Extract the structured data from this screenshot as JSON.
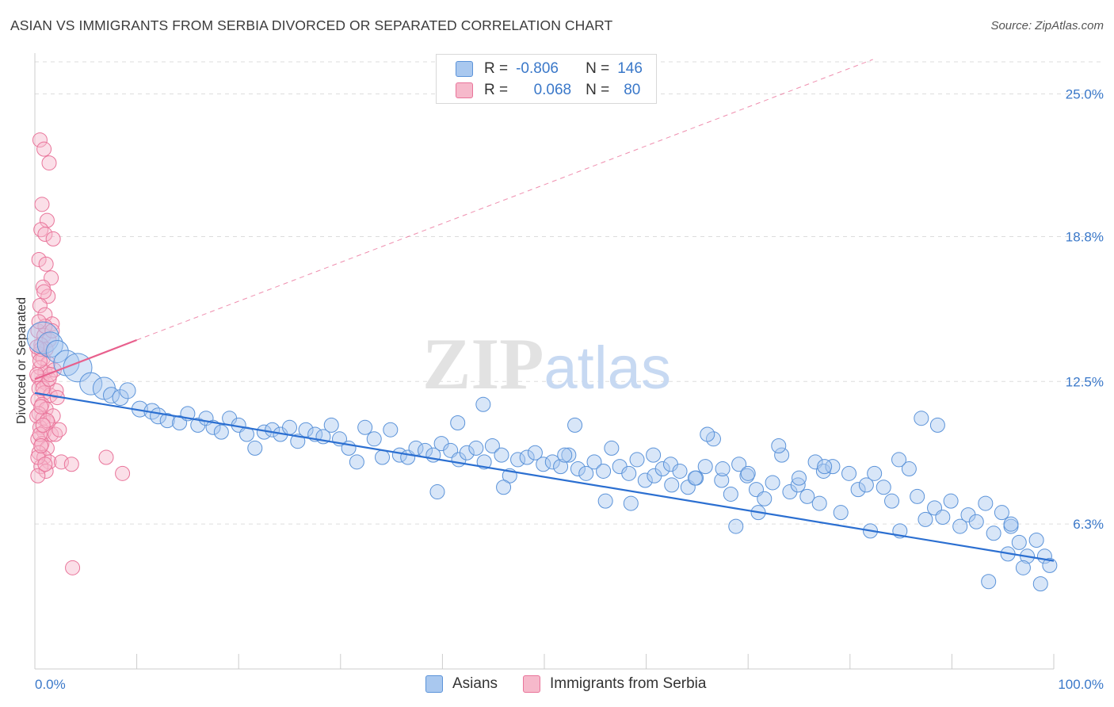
{
  "title": "ASIAN VS IMMIGRANTS FROM SERBIA DIVORCED OR SEPARATED CORRELATION CHART",
  "source": "Source: ZipAtlas.com",
  "watermark": {
    "part1": "ZIP",
    "part2": "atlas"
  },
  "legend_top": {
    "rows": [
      {
        "r_label": "R =",
        "r_value": "-0.806",
        "n_label": "N =",
        "n_value": "146"
      },
      {
        "r_label": "R =",
        "r_value": "0.068",
        "n_label": "N =",
        "n_value": "80"
      }
    ]
  },
  "legend_bottom": {
    "items": [
      {
        "label": "Asians"
      },
      {
        "label": "Immigrants from Serbia"
      }
    ]
  },
  "colors": {
    "blue_fill": "#a9c8ef",
    "blue_stroke": "#5b93d9",
    "blue_line": "#2b6fd1",
    "pink_fill": "#f6b9cb",
    "pink_stroke": "#e9749a",
    "pink_line": "#e8608d",
    "tick_text": "#3a78c9",
    "grid": "#dddddd"
  },
  "chart_data": {
    "type": "scatter",
    "title": "ASIAN VS IMMIGRANTS FROM SERBIA DIVORCED OR SEPARATED CORRELATION CHART",
    "xlabel": "",
    "ylabel": "Divorced or Separated",
    "xlim": [
      0,
      100
    ],
    "ylim": [
      0,
      26.5
    ],
    "x_tick_labels": [
      "0.0%",
      "100.0%"
    ],
    "y_ticks": [
      6.3,
      12.5,
      18.8,
      25.0
    ],
    "y_tick_labels": [
      "6.3%",
      "12.5%",
      "18.8%",
      "25.0%"
    ],
    "grid": true,
    "legend_placement": "top-center",
    "series": [
      {
        "name": "Asians",
        "r": -0.806,
        "n": 146,
        "trend": {
          "x": [
            0,
            100
          ],
          "y": [
            12.0,
            4.7
          ]
        },
        "points": [
          [
            0.8,
            14.4,
            20
          ],
          [
            1.5,
            14.1,
            16
          ],
          [
            2.2,
            13.8,
            14
          ],
          [
            3.1,
            13.3,
            16
          ],
          [
            4.2,
            13.1,
            18
          ],
          [
            5.5,
            12.4,
            14
          ],
          [
            6.8,
            12.2,
            14
          ],
          [
            7.5,
            11.9,
            10
          ],
          [
            8.4,
            11.8,
            10
          ],
          [
            9.1,
            12.1,
            10
          ],
          [
            10.3,
            11.3,
            10
          ],
          [
            11.5,
            11.2,
            10
          ],
          [
            12.1,
            11.0,
            10
          ],
          [
            13.0,
            10.8,
            9
          ],
          [
            14.2,
            10.7,
            9
          ],
          [
            15.0,
            11.1,
            9
          ],
          [
            16.0,
            10.6,
            9
          ],
          [
            16.8,
            10.9,
            9
          ],
          [
            17.5,
            10.5,
            9
          ],
          [
            18.3,
            10.3,
            9
          ],
          [
            19.1,
            10.9,
            9
          ],
          [
            20.0,
            10.6,
            9
          ],
          [
            20.8,
            10.2,
            9
          ],
          [
            21.6,
            9.6,
            9
          ],
          [
            22.5,
            10.3,
            9
          ],
          [
            23.3,
            10.4,
            9
          ],
          [
            24.1,
            10.2,
            9
          ],
          [
            25.0,
            10.5,
            9
          ],
          [
            25.8,
            9.9,
            9
          ],
          [
            26.6,
            10.4,
            9
          ],
          [
            27.5,
            10.2,
            9
          ],
          [
            28.3,
            10.1,
            9
          ],
          [
            29.1,
            10.6,
            9
          ],
          [
            29.9,
            10.0,
            9
          ],
          [
            30.8,
            9.6,
            9
          ],
          [
            31.6,
            9.0,
            9
          ],
          [
            32.4,
            10.5,
            9
          ],
          [
            33.3,
            10.0,
            9
          ],
          [
            34.1,
            9.2,
            9
          ],
          [
            34.9,
            10.4,
            9
          ],
          [
            35.8,
            9.3,
            9
          ],
          [
            36.6,
            9.2,
            9
          ],
          [
            37.4,
            9.6,
            9
          ],
          [
            38.3,
            9.5,
            9
          ],
          [
            39.1,
            9.3,
            9
          ],
          [
            39.9,
            9.8,
            9
          ],
          [
            40.8,
            9.5,
            9
          ],
          [
            41.6,
            9.1,
            9
          ],
          [
            42.4,
            9.4,
            9
          ],
          [
            43.3,
            9.6,
            9
          ],
          [
            44.1,
            9.0,
            9
          ],
          [
            44.9,
            9.7,
            9
          ],
          [
            45.8,
            9.3,
            9
          ],
          [
            46.6,
            8.4,
            9
          ],
          [
            47.4,
            9.1,
            9
          ],
          [
            48.3,
            9.2,
            9
          ],
          [
            49.1,
            9.4,
            9
          ],
          [
            49.9,
            8.9,
            9
          ],
          [
            50.8,
            9.0,
            9
          ],
          [
            51.6,
            8.8,
            9
          ],
          [
            52.4,
            9.3,
            9
          ],
          [
            53.3,
            8.7,
            9
          ],
          [
            54.1,
            8.5,
            9
          ],
          [
            54.9,
            9.0,
            9
          ],
          [
            55.8,
            8.6,
            9
          ],
          [
            56.6,
            9.6,
            9
          ],
          [
            57.4,
            8.8,
            9
          ],
          [
            58.3,
            8.5,
            9
          ],
          [
            59.1,
            9.1,
            9
          ],
          [
            59.9,
            8.2,
            9
          ],
          [
            60.8,
            8.4,
            9
          ],
          [
            61.6,
            8.7,
            9
          ],
          [
            62.4,
            8.9,
            9
          ],
          [
            63.3,
            8.6,
            9
          ],
          [
            64.1,
            7.9,
            9
          ],
          [
            64.9,
            8.3,
            9
          ],
          [
            65.8,
            8.8,
            9
          ],
          [
            66.6,
            10.0,
            9
          ],
          [
            67.4,
            8.2,
            9
          ],
          [
            68.3,
            7.6,
            9
          ],
          [
            69.1,
            8.9,
            9
          ],
          [
            69.9,
            8.4,
            9
          ],
          [
            70.8,
            7.8,
            9
          ],
          [
            71.6,
            7.4,
            9
          ],
          [
            72.4,
            8.1,
            9
          ],
          [
            73.3,
            9.3,
            9
          ],
          [
            74.1,
            7.7,
            9
          ],
          [
            74.9,
            8.0,
            9
          ],
          [
            75.8,
            7.5,
            9
          ],
          [
            76.6,
            9.0,
            9
          ],
          [
            77.4,
            8.6,
            9
          ],
          [
            78.3,
            8.8,
            9
          ],
          [
            79.1,
            6.8,
            9
          ],
          [
            79.9,
            8.5,
            9
          ],
          [
            80.8,
            7.8,
            9
          ],
          [
            81.6,
            8.0,
            9
          ],
          [
            82.4,
            8.5,
            9
          ],
          [
            83.3,
            7.9,
            9
          ],
          [
            84.1,
            7.3,
            9
          ],
          [
            84.9,
            6.0,
            9
          ],
          [
            85.8,
            8.7,
            9
          ],
          [
            86.6,
            7.5,
            9
          ],
          [
            87.4,
            6.5,
            9
          ],
          [
            88.3,
            7.0,
            9
          ],
          [
            89.1,
            6.6,
            9
          ],
          [
            89.9,
            7.3,
            9
          ],
          [
            90.8,
            6.2,
            9
          ],
          [
            91.6,
            6.7,
            9
          ],
          [
            92.4,
            6.4,
            9
          ],
          [
            93.3,
            7.2,
            9
          ],
          [
            94.1,
            5.9,
            9
          ],
          [
            94.9,
            6.8,
            9
          ],
          [
            95.8,
            6.2,
            9
          ],
          [
            96.6,
            5.5,
            9
          ],
          [
            97.4,
            4.9,
            9
          ],
          [
            98.3,
            5.6,
            9
          ],
          [
            99.1,
            4.9,
            9
          ],
          [
            99.6,
            4.5,
            9
          ],
          [
            44.0,
            11.5,
            9
          ],
          [
            41.5,
            10.7,
            9
          ],
          [
            53.0,
            10.6,
            9
          ],
          [
            66.0,
            10.2,
            9
          ],
          [
            73.0,
            9.7,
            9
          ],
          [
            77.5,
            8.8,
            9
          ],
          [
            84.8,
            9.1,
            9
          ],
          [
            87.0,
            10.9,
            9
          ],
          [
            93.6,
            3.8,
            9
          ],
          [
            95.5,
            5.0,
            9
          ],
          [
            97.0,
            4.4,
            9
          ],
          [
            98.7,
            3.7,
            9
          ],
          [
            95.8,
            6.3,
            9
          ],
          [
            102.0,
            6.6,
            9
          ],
          [
            67.5,
            8.7,
            9
          ],
          [
            70.0,
            8.5,
            9
          ],
          [
            62.5,
            8.0,
            9
          ],
          [
            58.5,
            7.2,
            9
          ],
          [
            46.0,
            7.9,
            9
          ],
          [
            39.5,
            7.7,
            9
          ],
          [
            56.0,
            7.3,
            9
          ],
          [
            64.8,
            8.3,
            9
          ],
          [
            75.0,
            8.3,
            9
          ],
          [
            88.6,
            10.6,
            9
          ],
          [
            71.0,
            6.8,
            9
          ],
          [
            77.0,
            7.2,
            9
          ],
          [
            82.0,
            6.0,
            9
          ],
          [
            68.8,
            6.2,
            9
          ],
          [
            60.7,
            9.3,
            9
          ],
          [
            52.0,
            9.3,
            9
          ]
        ]
      },
      {
        "name": "Immigrants from Serbia",
        "r": 0.068,
        "n": 80,
        "trend": {
          "x": [
            0,
            10
          ],
          "y": [
            12.6,
            14.3
          ],
          "extended": {
            "x": [
              0,
              100
            ],
            "y": [
              12.6,
              29.5
            ]
          }
        },
        "points": [
          [
            0.5,
            23.0,
            9
          ],
          [
            0.9,
            22.6,
            9
          ],
          [
            1.4,
            22.0,
            9
          ],
          [
            0.7,
            20.2,
            9
          ],
          [
            1.2,
            19.5,
            9
          ],
          [
            0.6,
            19.1,
            9
          ],
          [
            1.0,
            18.9,
            9
          ],
          [
            1.8,
            18.7,
            9
          ],
          [
            0.4,
            17.8,
            9
          ],
          [
            1.1,
            17.6,
            9
          ],
          [
            1.6,
            17.0,
            9
          ],
          [
            0.8,
            16.6,
            9
          ],
          [
            1.3,
            16.2,
            9
          ],
          [
            0.5,
            15.8,
            9
          ],
          [
            1.0,
            15.4,
            9
          ],
          [
            1.7,
            15.0,
            9
          ],
          [
            0.3,
            14.7,
            9
          ],
          [
            0.9,
            14.5,
            9
          ],
          [
            1.4,
            14.3,
            9
          ],
          [
            0.6,
            14.1,
            9
          ],
          [
            1.1,
            13.9,
            9
          ],
          [
            0.4,
            13.7,
            9
          ],
          [
            0.8,
            13.5,
            9
          ],
          [
            1.3,
            13.3,
            9
          ],
          [
            0.5,
            13.1,
            9
          ],
          [
            1.0,
            12.9,
            9
          ],
          [
            0.3,
            12.7,
            9
          ],
          [
            0.7,
            12.5,
            9
          ],
          [
            1.2,
            12.4,
            9
          ],
          [
            0.4,
            12.2,
            9
          ],
          [
            0.9,
            12.0,
            9
          ],
          [
            1.5,
            11.9,
            9
          ],
          [
            0.3,
            11.7,
            9
          ],
          [
            0.7,
            11.5,
            9
          ],
          [
            1.1,
            11.3,
            9
          ],
          [
            0.4,
            11.1,
            9
          ],
          [
            0.8,
            10.9,
            9
          ],
          [
            1.3,
            10.7,
            9
          ],
          [
            0.5,
            10.5,
            9
          ],
          [
            0.9,
            10.3,
            9
          ],
          [
            1.6,
            10.2,
            9
          ],
          [
            0.3,
            10.0,
            9
          ],
          [
            0.7,
            9.8,
            9
          ],
          [
            1.2,
            9.6,
            9
          ],
          [
            0.4,
            9.4,
            9
          ],
          [
            0.9,
            9.2,
            9
          ],
          [
            1.4,
            9.0,
            9
          ],
          [
            0.6,
            8.8,
            9
          ],
          [
            1.1,
            8.6,
            9
          ],
          [
            0.3,
            8.4,
            9
          ],
          [
            2.0,
            10.2,
            9
          ],
          [
            2.4,
            10.4,
            9
          ],
          [
            1.8,
            11.0,
            9
          ],
          [
            2.1,
            12.1,
            9
          ],
          [
            2.6,
            9.0,
            9
          ],
          [
            3.6,
            8.9,
            9
          ],
          [
            7.0,
            9.2,
            9
          ],
          [
            8.6,
            8.5,
            9
          ],
          [
            3.7,
            4.4,
            9
          ],
          [
            0.2,
            12.8,
            9
          ],
          [
            0.6,
            13.9,
            9
          ],
          [
            1.0,
            14.9,
            9
          ],
          [
            0.2,
            11.0,
            9
          ],
          [
            0.5,
            10.2,
            9
          ],
          [
            0.8,
            12.2,
            9
          ],
          [
            1.4,
            12.6,
            9
          ],
          [
            0.3,
            9.2,
            9
          ],
          [
            0.6,
            9.7,
            9
          ],
          [
            1.2,
            10.8,
            9
          ],
          [
            1.9,
            13.0,
            9
          ],
          [
            2.2,
            11.8,
            9
          ],
          [
            0.2,
            14.0,
            9
          ],
          [
            0.4,
            15.1,
            9
          ],
          [
            0.9,
            16.4,
            9
          ],
          [
            1.7,
            14.7,
            9
          ],
          [
            0.6,
            11.4,
            9
          ],
          [
            1.0,
            8.9,
            9
          ],
          [
            1.5,
            12.8,
            9
          ],
          [
            0.5,
            13.4,
            9
          ],
          [
            0.8,
            10.6,
            9
          ]
        ]
      }
    ]
  }
}
